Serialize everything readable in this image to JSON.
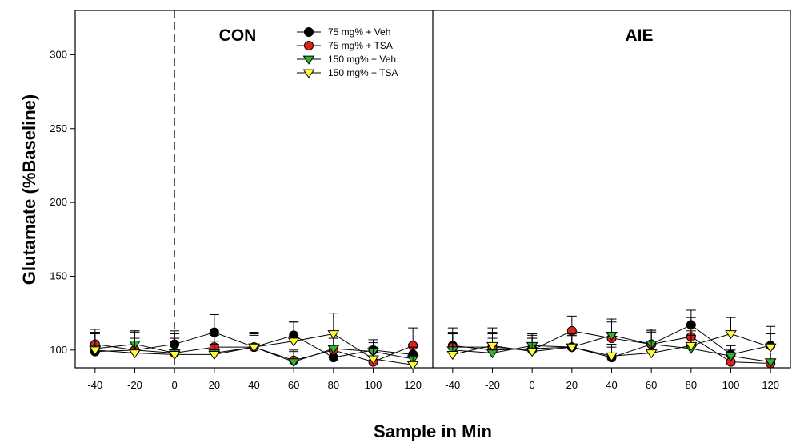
{
  "chart_data": {
    "type": "line",
    "ylabel": "Glutamate (%Baseline)",
    "xlabel": "Sample in Min",
    "ylim": [
      88,
      330
    ],
    "y_ticks": [
      100,
      150,
      200,
      250,
      300
    ],
    "x_ticks": [
      -40,
      -20,
      0,
      20,
      40,
      60,
      80,
      100,
      120
    ],
    "x": [
      -40,
      -20,
      0,
      20,
      40,
      60,
      80,
      100,
      120
    ],
    "x_range": [
      -50,
      130
    ],
    "grid": false,
    "legend_position": "top-right of left panel",
    "treatment_marker_x": 0,
    "legend": [
      {
        "name": "75 mg% + Veh",
        "marker": "circle",
        "color": "#000000"
      },
      {
        "name": "75 mg% + TSA",
        "marker": "circle",
        "color": "#e0201b"
      },
      {
        "name": "150 mg% + Veh",
        "marker": "triangle-down",
        "color": "#2db52d"
      },
      {
        "name": "150 mg% + TSA",
        "marker": "triangle-down",
        "color": "#ffff33"
      }
    ],
    "panels": [
      {
        "title": "CON",
        "series": [
          {
            "name": "75 mg% + Veh",
            "values": [
              99,
              100,
              104,
              112,
              102,
              110,
              95,
              100,
              97
            ],
            "errors": [
              13,
              13,
              9,
              12,
              10,
              9,
              6,
              7,
              7
            ]
          },
          {
            "name": "75 mg% + TSA",
            "values": [
              104,
              100,
              98,
              102,
              102,
              93,
              100,
              92,
              103
            ],
            "errors": [
              10,
              12,
              13,
              8,
              10,
              7,
              8,
              8,
              12
            ]
          },
          {
            "name": "150 mg% + Veh",
            "values": [
              101,
              104,
              98,
              98,
              102,
              92,
              101,
              99,
              94
            ],
            "errors": [
              10,
              9,
              10,
              8,
              8,
              7,
              7,
              6,
              8
            ]
          },
          {
            "name": "150 mg% + TSA",
            "values": [
              100,
              98,
              97,
              97,
              102,
              106,
              111,
              94,
              90
            ],
            "errors": [
              12,
              10,
              11,
              7,
              9,
              13,
              14,
              8,
              6
            ]
          }
        ]
      },
      {
        "title": "AIE",
        "series": [
          {
            "name": "75 mg% + Veh",
            "values": [
              103,
              100,
              101,
              102,
              95,
              104,
              117,
              97,
              103
            ],
            "errors": [
              12,
              12,
              9,
              8,
              7,
              10,
              10,
              6,
              8
            ]
          },
          {
            "name": "75 mg% + TSA",
            "values": [
              102,
              102,
              100,
              113,
              108,
              104,
              109,
              92,
              91
            ],
            "errors": [
              10,
              9,
              8,
              10,
              13,
              9,
              13,
              8,
              7
            ]
          },
          {
            "name": "150 mg% + Veh",
            "values": [
              100,
              98,
              103,
              102,
              110,
              104,
              101,
              96,
              92
            ],
            "errors": [
              11,
              10,
              8,
              9,
              9,
              8,
              9,
              7,
              6
            ]
          },
          {
            "name": "150 mg% + TSA",
            "values": [
              97,
              103,
              99,
              102,
              96,
              98,
              103,
              111,
              102
            ],
            "errors": [
              14,
              12,
              9,
              7,
              8,
              8,
              10,
              11,
              14
            ]
          }
        ]
      }
    ]
  }
}
